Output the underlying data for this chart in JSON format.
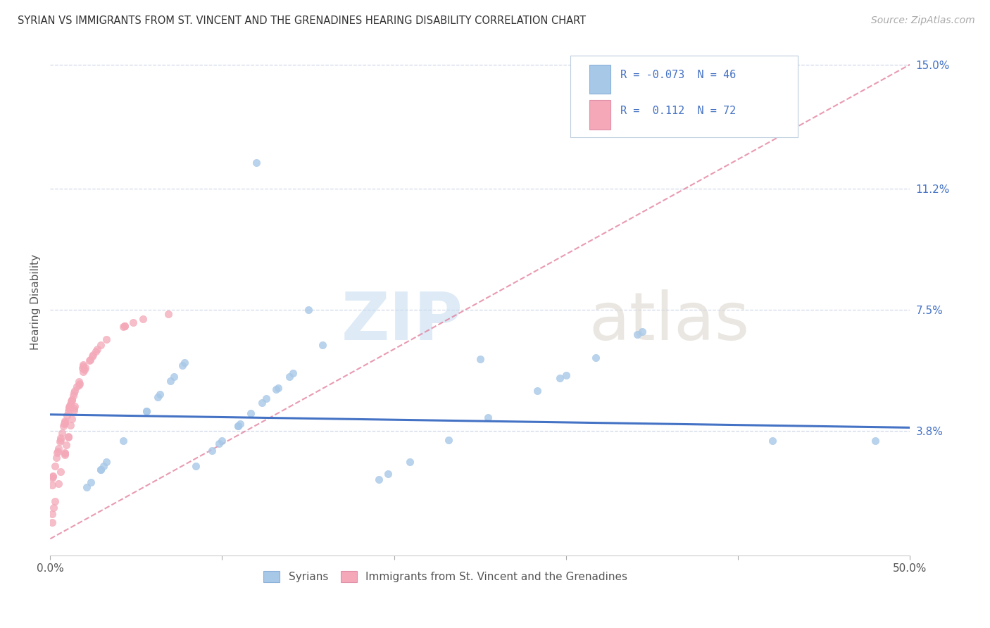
{
  "title": "SYRIAN VS IMMIGRANTS FROM ST. VINCENT AND THE GRENADINES HEARING DISABILITY CORRELATION CHART",
  "source": "Source: ZipAtlas.com",
  "ylabel": "Hearing Disability",
  "ytick_vals": [
    0.0,
    0.038,
    0.075,
    0.112,
    0.15
  ],
  "ytick_labels": [
    "",
    "3.8%",
    "7.5%",
    "11.2%",
    "15.0%"
  ],
  "xlim": [
    0.0,
    0.5
  ],
  "ylim": [
    0.0,
    0.155
  ],
  "syrians_R": "-0.073",
  "syrians_N": "46",
  "svg_R": "0.112",
  "svg_N": "72",
  "syrians_color": "#a8c8e8",
  "svg_color": "#f4a8b8",
  "syrians_line_color": "#4472c4",
  "svg_line_color": "#e07090",
  "grid_color": "#d0d8e8",
  "background": "#ffffff"
}
